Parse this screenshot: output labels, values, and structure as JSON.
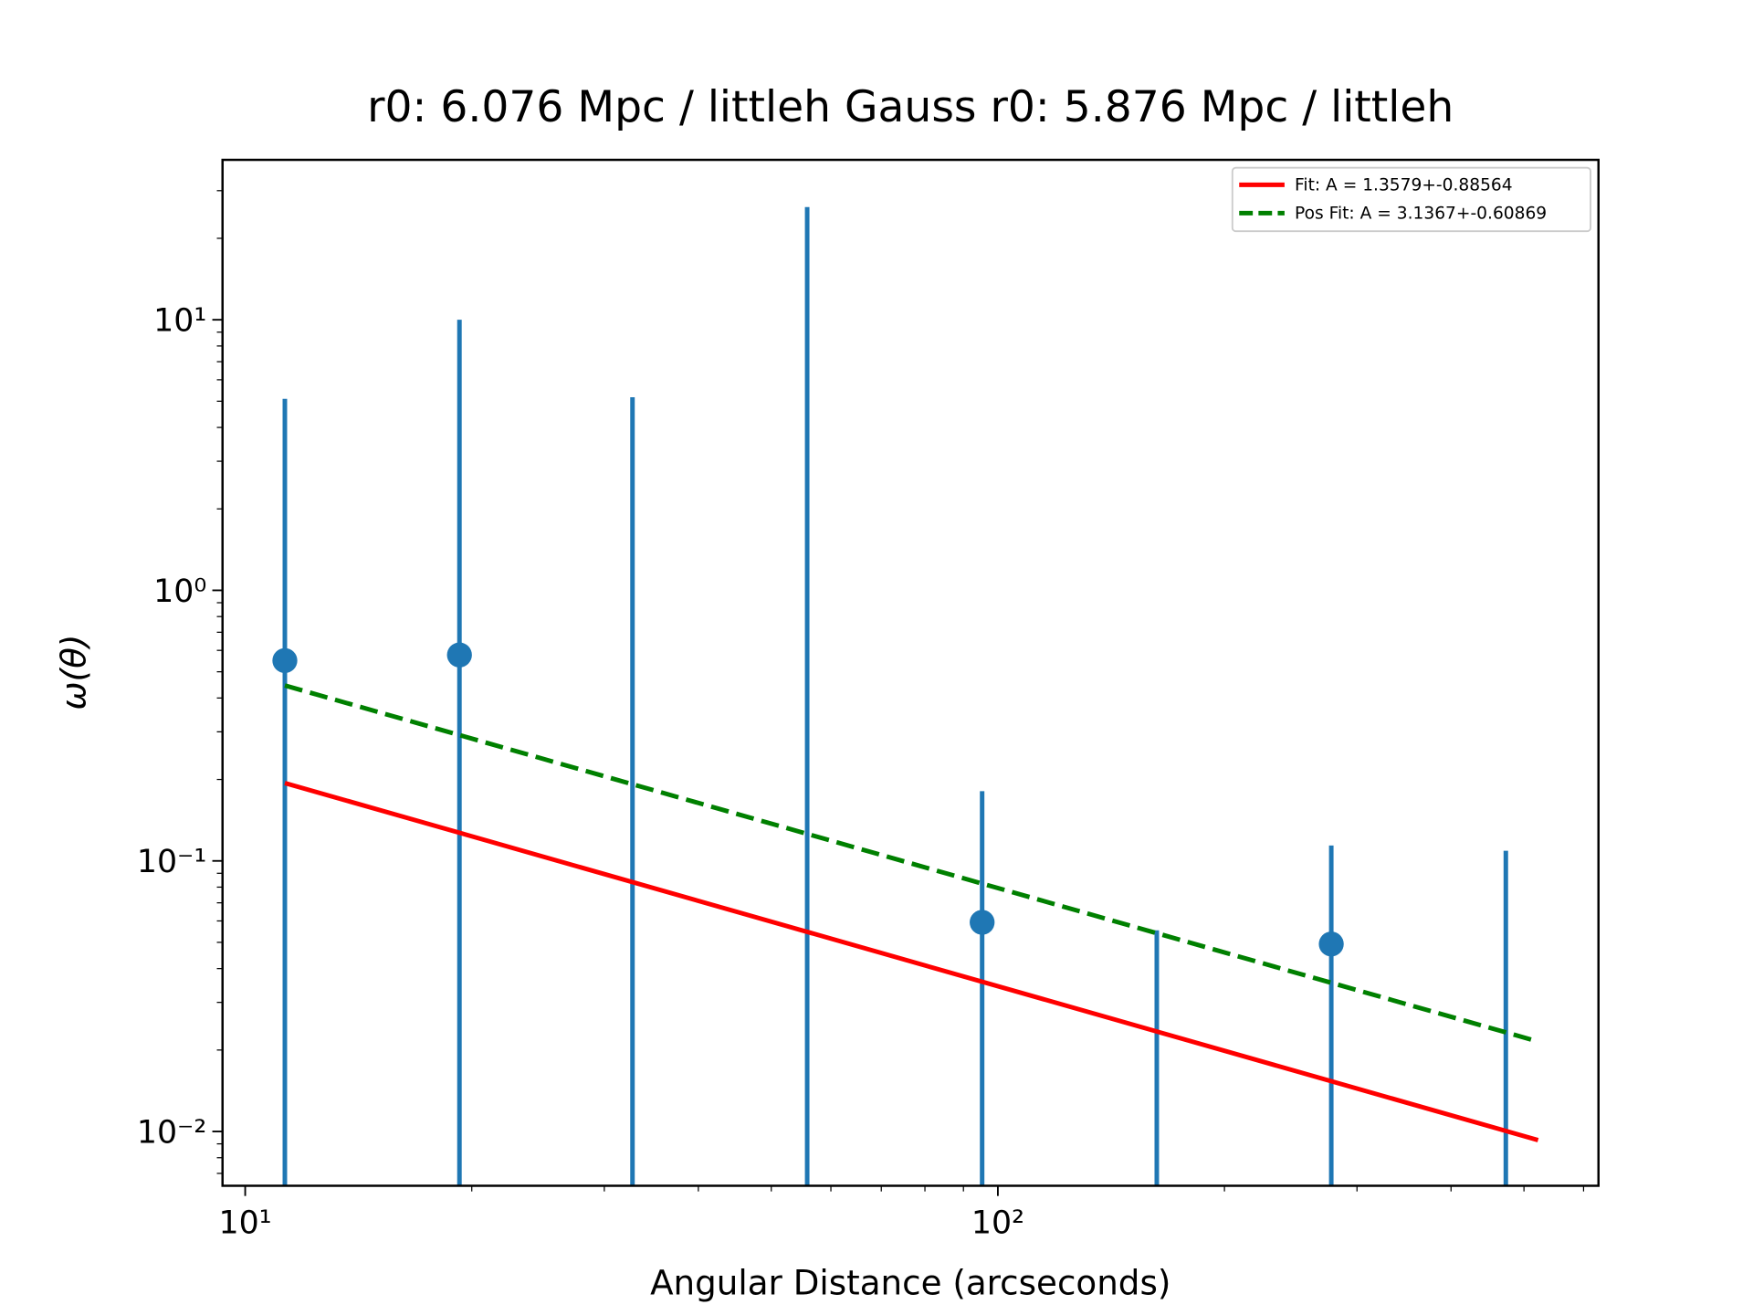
{
  "chart_data": {
    "type": "errorbar",
    "title": "r0: 6.076 Mpc / littleh Gauss r0: 5.876 Mpc / littleh",
    "x_label": "Angular Distance (arcseconds)",
    "y_label": "ω(θ)",
    "xscale": "log",
    "yscale": "log",
    "xlim": [
      9.33,
      628
    ],
    "ylim": [
      0.0063,
      39
    ],
    "xticks": [
      {
        "value": 10,
        "label": "10¹"
      },
      {
        "value": 100,
        "label": "10²"
      }
    ],
    "xminorticks": [
      20,
      30,
      40,
      50,
      60,
      70,
      80,
      90,
      200,
      300,
      400,
      500,
      600
    ],
    "yticks": [
      {
        "value": 0.01,
        "label": "10⁻²"
      },
      {
        "value": 0.1,
        "label": "10⁻¹"
      },
      {
        "value": 1,
        "label": "10⁰"
      },
      {
        "value": 10,
        "label": "10¹"
      }
    ],
    "yminorticks": [
      0.007,
      0.008,
      0.009,
      0.02,
      0.03,
      0.04,
      0.05,
      0.06,
      0.07,
      0.08,
      0.09,
      0.2,
      0.3,
      0.4,
      0.5,
      0.6,
      0.7,
      0.8,
      0.9,
      2,
      3,
      4,
      5,
      6,
      7,
      8,
      9,
      20,
      30
    ],
    "points": {
      "color": "#1f77b4",
      "x": [
        11.29,
        19.26,
        32.7,
        55.8,
        95.3,
        162.6,
        277.3,
        473
      ],
      "values": [
        0.55,
        0.577,
        null,
        null,
        0.0593,
        null,
        0.0493,
        null
      ],
      "err_upper": [
        5.1,
        10.0,
        5.17,
        26.1,
        0.181,
        0.0554,
        0.114,
        0.109
      ]
    },
    "series": [
      {
        "name": "Fit: A = 1.3579+-0.88564",
        "color": "#ff0000",
        "style": "solid",
        "x": [
          11.29,
          522
        ],
        "values": [
          0.194,
          0.00929
        ]
      },
      {
        "name": "Pos Fit: A = 3.1367+-0.60869",
        "color": "#008000",
        "style": "dashed",
        "x": [
          11.29,
          522
        ],
        "values": [
          0.445,
          0.0215
        ]
      }
    ],
    "legend": "upper right"
  }
}
